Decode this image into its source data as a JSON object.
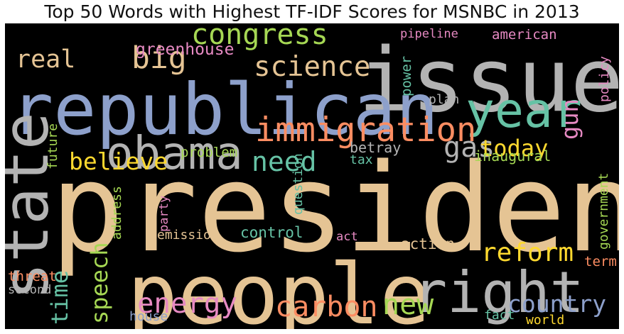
{
  "chart_data": {
    "type": "wordcloud",
    "title": "Top 50 Words with Highest TF-IDF Scores for MSNBC in 2013",
    "background": "#000000",
    "palette": [
      "#e5c494",
      "#8da0cb",
      "#b3b3b3",
      "#66c2a5",
      "#fc8d62",
      "#e78ac3",
      "#a6d854",
      "#ffd92f"
    ],
    "words": [
      {
        "text": "president",
        "color": "#e5c494"
      },
      {
        "text": "people",
        "color": "#e5c494"
      },
      {
        "text": "issue",
        "color": "#b3b3b3"
      },
      {
        "text": "republican",
        "color": "#8da0cb"
      },
      {
        "text": "state",
        "color": "#b3b3b3"
      },
      {
        "text": "obama",
        "color": "#b3b3b3"
      },
      {
        "text": "right",
        "color": "#b3b3b3"
      },
      {
        "text": "year",
        "color": "#66c2a5"
      },
      {
        "text": "immigration",
        "color": "#fc8d62"
      },
      {
        "text": "congress",
        "color": "#a6d854"
      },
      {
        "text": "science",
        "color": "#e5c494"
      },
      {
        "text": "big",
        "color": "#e5c494"
      },
      {
        "text": "real",
        "color": "#e5c494"
      },
      {
        "text": "greenhouse",
        "color": "#e78ac3"
      },
      {
        "text": "believe",
        "color": "#ffd92f"
      },
      {
        "text": "need",
        "color": "#66c2a5"
      },
      {
        "text": "gas",
        "color": "#b3b3b3"
      },
      {
        "text": "gun",
        "color": "#e78ac3"
      },
      {
        "text": "today",
        "color": "#ffd92f"
      },
      {
        "text": "reform",
        "color": "#ffd92f"
      },
      {
        "text": "energy",
        "color": "#e78ac3"
      },
      {
        "text": "carbon",
        "color": "#fc8d62"
      },
      {
        "text": "new",
        "color": "#a6d854"
      },
      {
        "text": "country",
        "color": "#8da0cb"
      },
      {
        "text": "time",
        "color": "#66c2a5"
      },
      {
        "text": "speech",
        "color": "#a6d854"
      },
      {
        "text": "pipeline",
        "color": "#e78ac3"
      },
      {
        "text": "american",
        "color": "#e78ac3"
      },
      {
        "text": "policy",
        "color": "#e78ac3"
      },
      {
        "text": "power",
        "color": "#66c2a5"
      },
      {
        "text": "plan",
        "color": "#b3b3b3"
      },
      {
        "text": "problem",
        "color": "#a6d854"
      },
      {
        "text": "betray",
        "color": "#b3b3b3"
      },
      {
        "text": "tax",
        "color": "#66c2a5"
      },
      {
        "text": "inaugural",
        "color": "#a6d854"
      },
      {
        "text": "future",
        "color": "#a6d854"
      },
      {
        "text": "government",
        "color": "#a6d854"
      },
      {
        "text": "question",
        "color": "#66c2a5"
      },
      {
        "text": "party",
        "color": "#e78ac3"
      },
      {
        "text": "address",
        "color": "#a6d854"
      },
      {
        "text": "emission",
        "color": "#e5c494"
      },
      {
        "text": "control",
        "color": "#66c2a5"
      },
      {
        "text": "act",
        "color": "#e78ac3"
      },
      {
        "text": "action",
        "color": "#e5c494"
      },
      {
        "text": "term",
        "color": "#fc8d62"
      },
      {
        "text": "threat",
        "color": "#fc8d62"
      },
      {
        "text": "second",
        "color": "#b3b3b3"
      },
      {
        "text": "house",
        "color": "#8da0cb"
      },
      {
        "text": "fact",
        "color": "#66c2a5"
      },
      {
        "text": "world",
        "color": "#ffd92f"
      }
    ]
  }
}
